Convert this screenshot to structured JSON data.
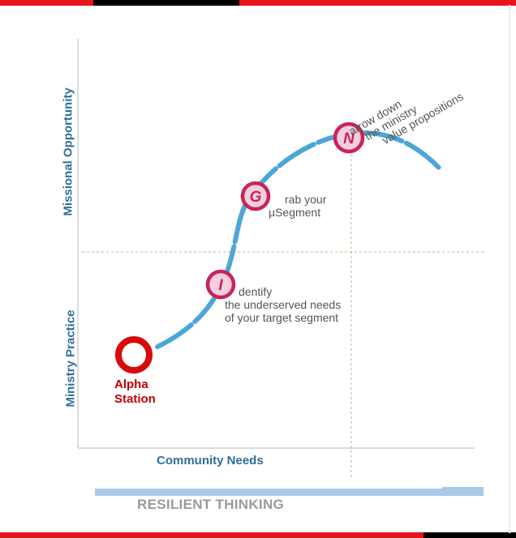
{
  "axes": {
    "y_upper_label": "Missional Opportunity",
    "y_lower_label": "Ministry Practice",
    "x_label": "Community Needs"
  },
  "start_node": {
    "lines": [
      "Alpha",
      "Station"
    ]
  },
  "milestones": [
    {
      "letter": "I",
      "caption_lines": [
        "dentify",
        "the underserved needs",
        "of your target segment"
      ]
    },
    {
      "letter": "G",
      "caption_lines": [
        "rab your",
        "µSegment"
      ]
    },
    {
      "letter": "N",
      "caption_lines": [
        "arrow down",
        "the ministry",
        "value propositions"
      ]
    }
  ],
  "footer": {
    "title": "RESILIENT THINKING"
  },
  "colors": {
    "top_bar_black": "#000000",
    "top_bar_red": "#e8141b",
    "curve": "#4da6d8",
    "circle_border": "#c8245a",
    "circle_fill": "#f3cfe0",
    "alpha_red": "#d60c0c",
    "axis_text": "#2f6f98",
    "dashed_guide": "#a8c08a",
    "footer_bar": "#a9c9e8"
  }
}
